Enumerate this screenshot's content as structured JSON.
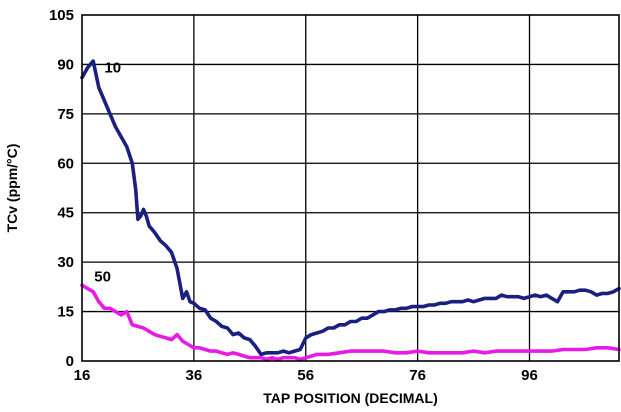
{
  "chart_data": {
    "type": "line",
    "xlabel": "TAP POSITION (DECIMAL)",
    "ylabel": "TCv (ppm/°C)",
    "xlim": [
      16,
      112
    ],
    "ylim": [
      0,
      105
    ],
    "x_ticks": [
      16,
      36,
      56,
      76,
      96
    ],
    "x_tick_labels": [
      "16",
      "36",
      "56",
      "76",
      "96"
    ],
    "y_ticks": [
      0,
      15,
      30,
      45,
      60,
      75,
      90,
      105
    ],
    "y_tick_labels": [
      "0",
      "15",
      "30",
      "45",
      "60",
      "75",
      "90",
      "105"
    ],
    "grid": true,
    "series": [
      {
        "name": "10",
        "color": "#1a1f80",
        "points": [
          [
            16,
            86
          ],
          [
            17,
            89
          ],
          [
            18,
            91
          ],
          [
            19,
            83
          ],
          [
            20,
            79
          ],
          [
            21,
            75
          ],
          [
            22,
            71
          ],
          [
            23,
            68
          ],
          [
            24,
            65
          ],
          [
            25,
            60
          ],
          [
            25.6,
            52
          ],
          [
            26,
            43
          ],
          [
            26.5,
            44
          ],
          [
            27,
            46
          ],
          [
            27.5,
            44
          ],
          [
            28,
            41
          ],
          [
            29,
            39
          ],
          [
            30,
            36.5
          ],
          [
            31,
            35
          ],
          [
            32,
            33
          ],
          [
            33,
            28
          ],
          [
            34,
            19
          ],
          [
            34.7,
            21
          ],
          [
            35.3,
            18
          ],
          [
            36,
            17.5
          ],
          [
            37,
            16
          ],
          [
            38,
            15.5
          ],
          [
            39,
            13
          ],
          [
            40,
            12
          ],
          [
            41,
            10.5
          ],
          [
            42,
            10
          ],
          [
            43,
            8
          ],
          [
            44,
            8.5
          ],
          [
            45,
            7
          ],
          [
            46,
            6.5
          ],
          [
            47,
            4.5
          ],
          [
            48,
            2
          ],
          [
            49,
            2.5
          ],
          [
            50,
            2.5
          ],
          [
            51,
            2.5
          ],
          [
            52,
            3
          ],
          [
            53,
            2.5
          ],
          [
            54,
            3
          ],
          [
            55,
            3.5
          ],
          [
            56,
            7
          ],
          [
            57,
            8
          ],
          [
            58,
            8.5
          ],
          [
            59,
            9
          ],
          [
            60,
            10
          ],
          [
            61,
            10
          ],
          [
            62,
            11
          ],
          [
            63,
            11
          ],
          [
            64,
            12
          ],
          [
            65,
            12
          ],
          [
            66,
            13
          ],
          [
            67,
            13
          ],
          [
            68,
            14
          ],
          [
            69,
            15
          ],
          [
            70,
            15
          ],
          [
            71,
            15.5
          ],
          [
            72,
            15.5
          ],
          [
            73,
            16
          ],
          [
            74,
            16
          ],
          [
            75,
            16.5
          ],
          [
            76,
            16.5
          ],
          [
            77,
            16.5
          ],
          [
            78,
            17
          ],
          [
            79,
            17
          ],
          [
            80,
            17.5
          ],
          [
            81,
            17.5
          ],
          [
            82,
            18
          ],
          [
            83,
            18
          ],
          [
            84,
            18
          ],
          [
            85,
            18.5
          ],
          [
            86,
            18
          ],
          [
            87,
            18.5
          ],
          [
            88,
            19
          ],
          [
            89,
            19
          ],
          [
            90,
            19
          ],
          [
            91,
            20
          ],
          [
            92,
            19.5
          ],
          [
            93,
            19.5
          ],
          [
            94,
            19.5
          ],
          [
            95,
            19
          ],
          [
            96,
            19.5
          ],
          [
            97,
            20
          ],
          [
            98,
            19.5
          ],
          [
            99,
            20
          ],
          [
            100,
            19
          ],
          [
            101,
            18
          ],
          [
            102,
            21
          ],
          [
            103,
            21
          ],
          [
            104,
            21
          ],
          [
            105,
            21.5
          ],
          [
            106,
            21.5
          ],
          [
            107,
            21
          ],
          [
            108,
            20
          ],
          [
            109,
            20.5
          ],
          [
            110,
            20.5
          ],
          [
            111,
            21
          ],
          [
            112,
            22
          ]
        ]
      },
      {
        "name": "50",
        "color": "#e81be6",
        "points": [
          [
            16,
            23
          ],
          [
            17,
            22
          ],
          [
            18,
            21
          ],
          [
            19,
            18
          ],
          [
            20,
            16
          ],
          [
            21,
            16
          ],
          [
            22,
            15
          ],
          [
            23,
            14
          ],
          [
            24,
            15
          ],
          [
            25,
            11
          ],
          [
            26,
            10.5
          ],
          [
            27,
            10
          ],
          [
            28,
            9
          ],
          [
            29,
            8
          ],
          [
            30,
            7.5
          ],
          [
            31,
            7
          ],
          [
            32,
            6.5
          ],
          [
            33,
            8
          ],
          [
            34,
            6
          ],
          [
            35,
            5
          ],
          [
            36,
            4
          ],
          [
            37,
            4
          ],
          [
            38,
            3.5
          ],
          [
            39,
            3
          ],
          [
            40,
            3
          ],
          [
            41,
            2.5
          ],
          [
            42,
            2
          ],
          [
            43,
            2.5
          ],
          [
            44,
            2
          ],
          [
            45,
            1.5
          ],
          [
            46,
            1
          ],
          [
            47,
            1
          ],
          [
            48,
            1
          ],
          [
            49,
            0.5
          ],
          [
            50,
            1
          ],
          [
            51,
            0.5
          ],
          [
            52,
            1
          ],
          [
            53,
            1
          ],
          [
            54,
            1
          ],
          [
            55,
            0.5
          ],
          [
            56,
            1
          ],
          [
            57,
            1.5
          ],
          [
            58,
            2
          ],
          [
            59,
            2
          ],
          [
            60,
            2
          ],
          [
            62,
            2.5
          ],
          [
            64,
            3
          ],
          [
            66,
            3
          ],
          [
            68,
            3
          ],
          [
            70,
            3
          ],
          [
            72,
            2.5
          ],
          [
            74,
            2.5
          ],
          [
            76,
            3
          ],
          [
            78,
            2.5
          ],
          [
            80,
            2.5
          ],
          [
            82,
            2.5
          ],
          [
            84,
            2.5
          ],
          [
            86,
            3
          ],
          [
            88,
            2.5
          ],
          [
            90,
            3
          ],
          [
            92,
            3
          ],
          [
            94,
            3
          ],
          [
            96,
            3
          ],
          [
            98,
            3
          ],
          [
            100,
            3
          ],
          [
            102,
            3.5
          ],
          [
            104,
            3.5
          ],
          [
            106,
            3.5
          ],
          [
            108,
            4
          ],
          [
            110,
            4
          ],
          [
            112,
            3.5
          ]
        ]
      }
    ],
    "annotations": [
      "10",
      "50"
    ]
  }
}
